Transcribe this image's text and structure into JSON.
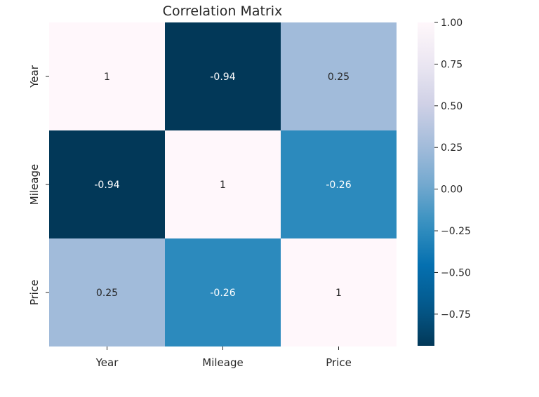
{
  "chart_data": {
    "type": "heatmap",
    "title": "Correlation Matrix",
    "x_categories": [
      "Year",
      "Mileage",
      "Price"
    ],
    "y_categories": [
      "Year",
      "Mileage",
      "Price"
    ],
    "values": [
      [
        1,
        -0.94,
        0.25
      ],
      [
        -0.94,
        1,
        -0.26
      ],
      [
        0.25,
        -0.26,
        1
      ]
    ],
    "annotations": [
      [
        "1",
        "-0.94",
        "0.25"
      ],
      [
        "-0.94",
        "1",
        "-0.26"
      ],
      [
        "0.25",
        "-0.26",
        "1"
      ]
    ],
    "colormap": "PuBu_r",
    "color_range": [
      -0.94,
      1.0
    ],
    "colorbar_ticks": [
      {
        "value": 1.0,
        "label": "1.00"
      },
      {
        "value": 0.75,
        "label": "0.75"
      },
      {
        "value": 0.5,
        "label": "0.50"
      },
      {
        "value": 0.25,
        "label": "0.25"
      },
      {
        "value": 0.0,
        "label": "0.00"
      },
      {
        "value": -0.25,
        "label": "−0.25"
      },
      {
        "value": -0.5,
        "label": "−0.50"
      },
      {
        "value": -0.75,
        "label": "−0.75"
      }
    ]
  }
}
